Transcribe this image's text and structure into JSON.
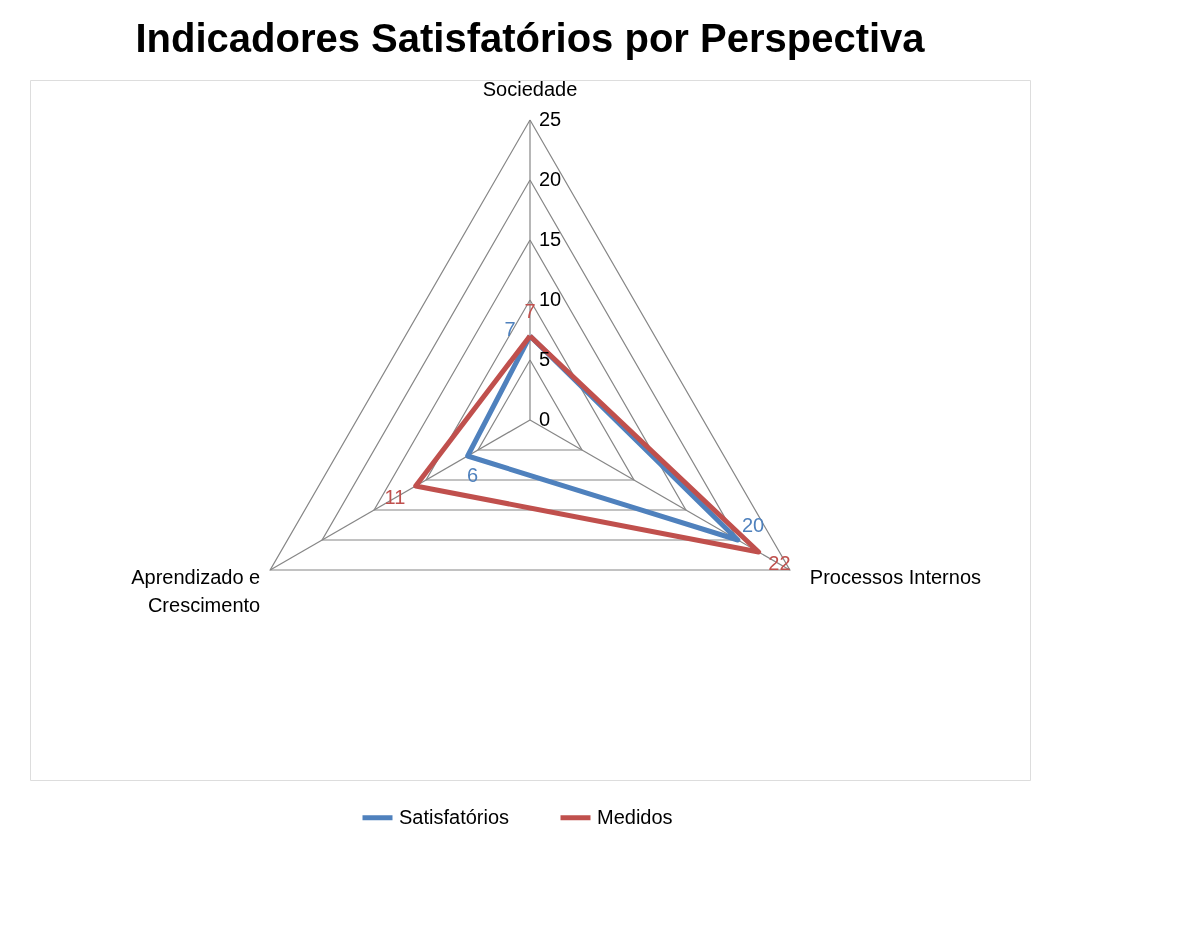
{
  "chart_data": {
    "type": "radar",
    "title": "Indicadores Satisfatórios por Perspectiva",
    "categories": [
      "Sociedade",
      "Processos Internos",
      "Aprendizado e Crescimento"
    ],
    "series": [
      {
        "name": "Satisfatórios",
        "color": "#4f81bd",
        "values": [
          7,
          20,
          6
        ]
      },
      {
        "name": "Medidos",
        "color": "#c0504d",
        "values": [
          7,
          22,
          11
        ]
      }
    ],
    "ylim": [
      0,
      25
    ],
    "yticks": [
      0,
      5,
      10,
      15,
      20,
      25
    ],
    "grid": true,
    "legend": "bottom",
    "data_labels": true,
    "marker": "none",
    "line_style": "solid"
  }
}
